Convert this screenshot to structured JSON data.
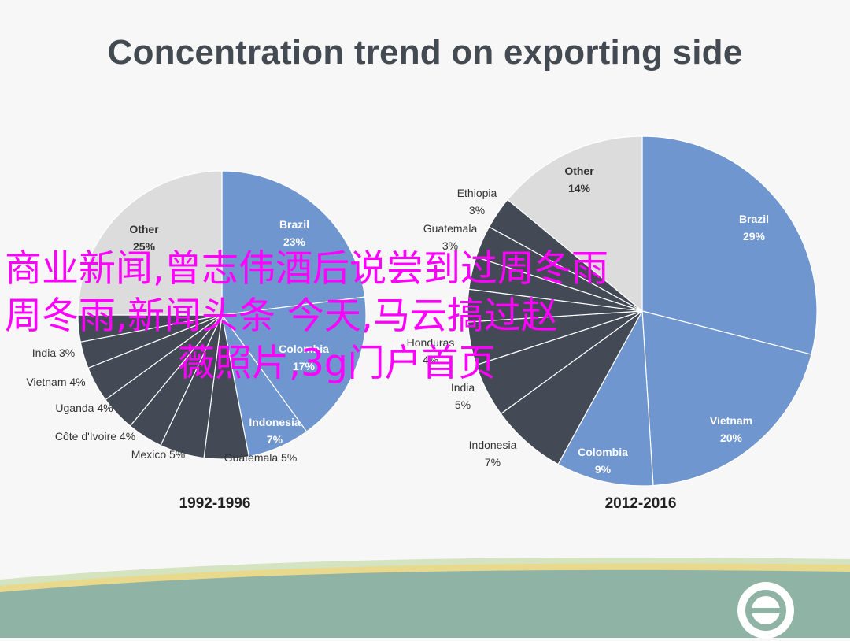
{
  "title": "Concentration trend on exporting side",
  "overlay_text": {
    "line1": "商业新闻,曾志伟酒后说尝到过周冬雨",
    "line2": "周冬雨,新闻头条 今天,马云搞过赵",
    "line3": "薇照片,3g门户首页"
  },
  "colors": {
    "title": "#444a52",
    "blue": "#6f96cf",
    "other": "#dcdcdc",
    "dark": "#434a56",
    "overlay": "#ff00ff"
  },
  "chart_data": [
    {
      "type": "pie",
      "title": "1992-1996",
      "slices": [
        {
          "label": "Brazil",
          "value": 23,
          "display": "23%",
          "color": "blue"
        },
        {
          "label": "Colombia",
          "value": 17,
          "display": "17%",
          "color": "blue"
        },
        {
          "label": "Indonesia",
          "value": 7,
          "display": "7%",
          "color": "blue"
        },
        {
          "label": "Guatemala",
          "value": 5,
          "display": "5%",
          "color": "dark"
        },
        {
          "label": "Mexico",
          "value": 5,
          "display": "5%",
          "color": "dark"
        },
        {
          "label": "Côte d'Ivoire",
          "value": 4,
          "display": "4%",
          "color": "dark"
        },
        {
          "label": "Uganda",
          "value": 4,
          "display": "4%",
          "color": "dark"
        },
        {
          "label": "Vietnam",
          "value": 4,
          "display": "4%",
          "color": "dark"
        },
        {
          "label": "India",
          "value": 3,
          "display": "3%",
          "color": "dark"
        },
        {
          "label": "",
          "value": 3,
          "display": "",
          "color": "dark"
        },
        {
          "label": "Other",
          "value": 25,
          "display": "25%",
          "color": "other"
        }
      ]
    },
    {
      "type": "pie",
      "title": "2012-2016",
      "slices": [
        {
          "label": "Brazil",
          "value": 29,
          "display": "29%",
          "color": "blue"
        },
        {
          "label": "Vietnam",
          "value": 20,
          "display": "20%",
          "color": "blue"
        },
        {
          "label": "Colombia",
          "value": 9,
          "display": "9%",
          "color": "blue"
        },
        {
          "label": "Indonesia",
          "value": 7,
          "display": "7%",
          "color": "dark"
        },
        {
          "label": "India",
          "value": 5,
          "display": "5%",
          "color": "dark"
        },
        {
          "label": "Honduras",
          "value": 4,
          "display": "4%",
          "color": "dark"
        },
        {
          "label": "",
          "value": 3,
          "display": "",
          "color": "dark"
        },
        {
          "label": "",
          "value": 3,
          "display": "",
          "color": "dark"
        },
        {
          "label": "Guatemala",
          "value": 3,
          "display": "3%",
          "color": "dark"
        },
        {
          "label": "Ethiopia",
          "value": 3,
          "display": "3%",
          "color": "dark"
        },
        {
          "label": "Other",
          "value": 14,
          "display": "14%",
          "color": "other"
        }
      ]
    }
  ]
}
